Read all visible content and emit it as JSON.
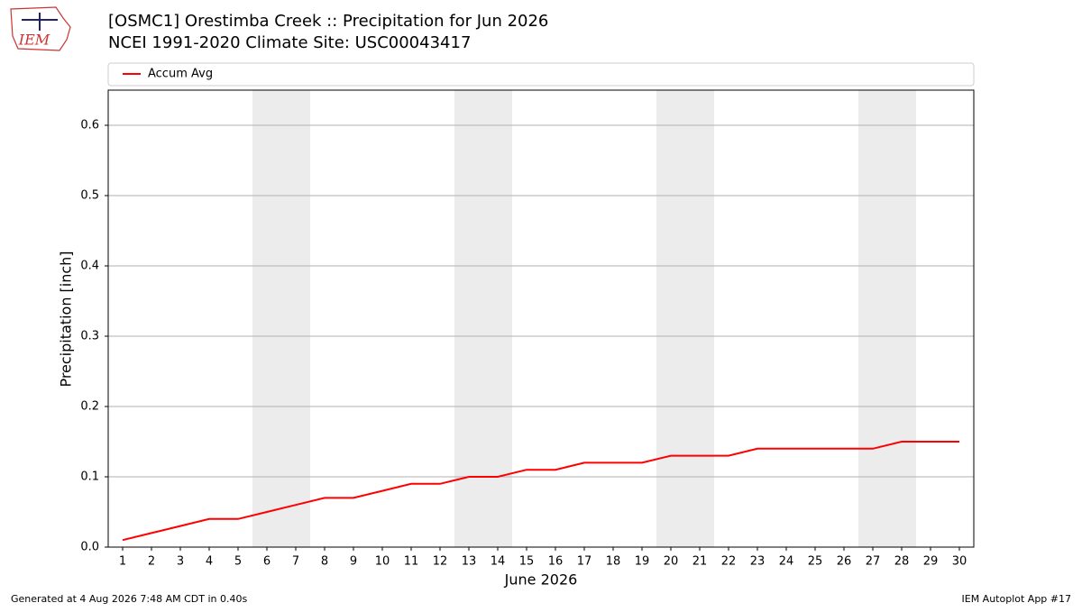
{
  "logo_text": "IEM",
  "footer": {
    "left": "Generated at 4 Aug 2026 7:48 AM CDT in 0.40s",
    "right": "IEM Autoplot App #17"
  },
  "chart_data": {
    "type": "line",
    "title": "[OSMC1] Orestimba Creek :: Precipitation for Jun 2026",
    "subtitle": "NCEI 1991-2020 Climate Site: USC00043417",
    "xlabel": "June 2026",
    "ylabel": "Precipitation [inch]",
    "x": [
      1,
      2,
      3,
      4,
      5,
      6,
      7,
      8,
      9,
      10,
      11,
      12,
      13,
      14,
      15,
      16,
      17,
      18,
      19,
      20,
      21,
      22,
      23,
      24,
      25,
      26,
      27,
      28,
      29,
      30
    ],
    "series": [
      {
        "name": "Accum Avg",
        "color": "#ff0000",
        "values": [
          0.01,
          0.02,
          0.03,
          0.04,
          0.04,
          0.05,
          0.06,
          0.07,
          0.07,
          0.08,
          0.09,
          0.09,
          0.1,
          0.1,
          0.11,
          0.11,
          0.12,
          0.12,
          0.12,
          0.13,
          0.13,
          0.13,
          0.14,
          0.14,
          0.14,
          0.14,
          0.14,
          0.15,
          0.15,
          0.15
        ]
      }
    ],
    "shaded_ranges": [
      [
        5.5,
        7.5
      ],
      [
        12.5,
        14.5
      ],
      [
        19.5,
        21.5
      ],
      [
        26.5,
        28.5
      ]
    ],
    "shade_color": "#ececec",
    "xlim": [
      0.5,
      30.5
    ],
    "ylim": [
      0,
      0.65
    ],
    "xticks": [
      1,
      2,
      3,
      4,
      5,
      6,
      7,
      8,
      9,
      10,
      11,
      12,
      13,
      14,
      15,
      16,
      17,
      18,
      19,
      20,
      21,
      22,
      23,
      24,
      25,
      26,
      27,
      28,
      29,
      30
    ],
    "yticks": [
      {
        "value": 0,
        "label": "0.0"
      },
      0.1,
      0.2,
      0.3,
      0.4,
      0.5,
      0.6
    ],
    "grid": "y",
    "legend": "top"
  }
}
